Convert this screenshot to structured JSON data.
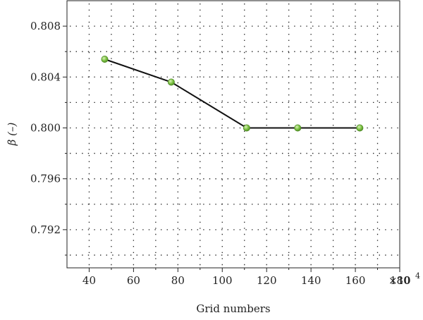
{
  "chart_data": {
    "type": "line",
    "title": "",
    "xlabel": "Grid numbers",
    "ylabel": "β (–)",
    "x_multiplier_label": "×10",
    "x_multiplier_exponent": "4",
    "xlim": [
      30,
      180
    ],
    "ylim": [
      0.789,
      0.81
    ],
    "x_ticks": [
      40,
      60,
      80,
      100,
      120,
      140,
      160,
      180
    ],
    "x_tick_labels": [
      "40",
      "60",
      "80",
      "100",
      "120",
      "140",
      "160",
      "180"
    ],
    "y_ticks": [
      0.792,
      0.796,
      0.8,
      0.804,
      0.808
    ],
    "y_tick_labels": [
      "0.792",
      "0.796",
      "0.800",
      "0.804",
      "0.808"
    ],
    "x_minor_grid": [
      30,
      50,
      70,
      90,
      110,
      130,
      150,
      170
    ],
    "y_minor_grid": [
      0.79,
      0.794,
      0.798,
      0.802,
      0.806
    ],
    "grid": true,
    "legend": "none",
    "series": [
      {
        "x": [
          47,
          77,
          111,
          134,
          162
        ],
        "y": [
          0.8054,
          0.8036,
          0.8,
          0.8,
          0.8
        ],
        "line_color": "#111111",
        "marker_color": "#7cc242",
        "marker_edge_color": "#4e8a26"
      }
    ]
  }
}
